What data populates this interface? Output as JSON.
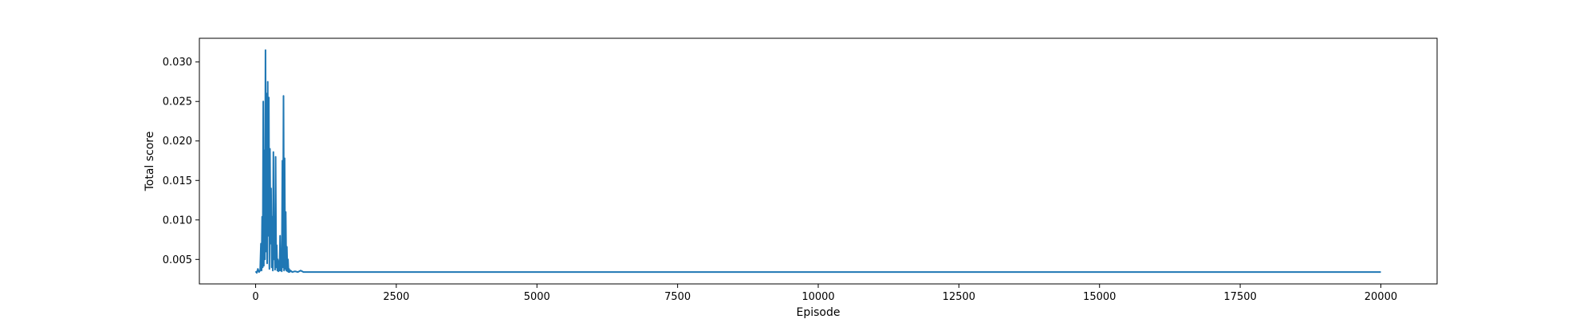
{
  "chart_data": {
    "type": "line",
    "title": "",
    "xlabel": "Episode",
    "ylabel": "Total score",
    "xlim": [
      -1000,
      21000
    ],
    "ylim": [
      0.0019,
      0.033
    ],
    "xticks": [
      0,
      2500,
      5000,
      7500,
      10000,
      12500,
      15000,
      17500,
      20000
    ],
    "xtick_labels": [
      "0",
      "2500",
      "5000",
      "7500",
      "10000",
      "12500",
      "15000",
      "17500",
      "20000"
    ],
    "yticks": [
      0.005,
      0.01,
      0.015,
      0.02,
      0.025,
      0.03
    ],
    "ytick_labels": [
      "0.005",
      "0.010",
      "0.015",
      "0.020",
      "0.025",
      "0.030"
    ],
    "grid": false,
    "legend": "none",
    "series": [
      {
        "color": "#1f77b4",
        "x": [
          0,
          20,
          40,
          60,
          80,
          95,
          105,
          115,
          125,
          135,
          145,
          155,
          165,
          175,
          185,
          195,
          205,
          215,
          225,
          235,
          245,
          255,
          265,
          275,
          285,
          295,
          305,
          315,
          325,
          335,
          345,
          355,
          365,
          375,
          385,
          395,
          405,
          415,
          425,
          435,
          445,
          455,
          465,
          475,
          485,
          495,
          505,
          515,
          525,
          535,
          545,
          555,
          565,
          575,
          585,
          595,
          605,
          620,
          650,
          700,
          750,
          800,
          850,
          900,
          1000,
          1500,
          2500,
          5000,
          7500,
          10000,
          12500,
          15000,
          17500,
          20000
        ],
        "y": [
          0.0035,
          0.0033,
          0.0038,
          0.0034,
          0.0036,
          0.007,
          0.0036,
          0.0104,
          0.004,
          0.025,
          0.0042,
          0.0188,
          0.005,
          0.0315,
          0.006,
          0.026,
          0.0045,
          0.0275,
          0.008,
          0.0255,
          0.0038,
          0.019,
          0.007,
          0.014,
          0.004,
          0.0104,
          0.0036,
          0.0186,
          0.005,
          0.0082,
          0.0037,
          0.018,
          0.004,
          0.0068,
          0.0036,
          0.005,
          0.0035,
          0.0048,
          0.0036,
          0.008,
          0.0036,
          0.006,
          0.0035,
          0.0175,
          0.004,
          0.0257,
          0.0036,
          0.0178,
          0.0038,
          0.011,
          0.0036,
          0.0066,
          0.0035,
          0.005,
          0.0034,
          0.0038,
          0.0034,
          0.0036,
          0.0034,
          0.0035,
          0.0034,
          0.0036,
          0.0034,
          0.0034,
          0.0034,
          0.0034,
          0.0034,
          0.0034,
          0.0034,
          0.0034,
          0.0034,
          0.0034,
          0.0034,
          0.0034
        ]
      }
    ]
  }
}
